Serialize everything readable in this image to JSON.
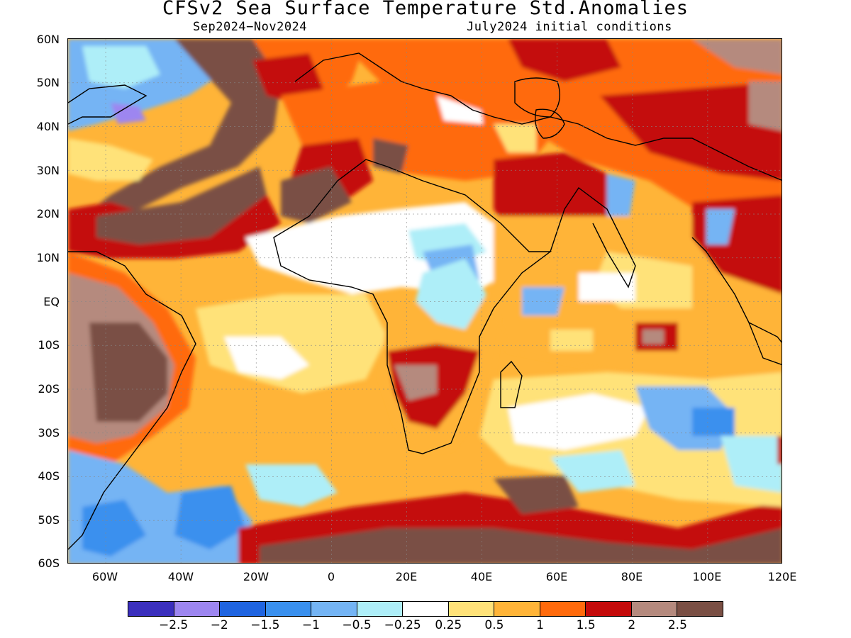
{
  "title": "CFSv2 Sea Surface Temperature Std.Anomalies",
  "subtitle_left": "Sep2024−Nov2024",
  "subtitle_right": "July2024 initial conditions",
  "map": {
    "lat_labels": [
      "60N",
      "50N",
      "40N",
      "30N",
      "20N",
      "10N",
      "EQ",
      "10S",
      "20S",
      "30S",
      "40S",
      "50S",
      "60S"
    ],
    "lon_labels": [
      "60W",
      "40W",
      "20W",
      "0",
      "20E",
      "40E",
      "60E",
      "80E",
      "100E",
      "120E"
    ],
    "lat_range": [
      -60,
      60
    ],
    "lon_range": [
      -70,
      120
    ],
    "grid": "dotted",
    "colors_note": "filled contours of standardized anomaly"
  },
  "colorbar": {
    "colors": [
      "#3b2fbd",
      "#9d86f0",
      "#1f64e0",
      "#3a90ee",
      "#74b4f4",
      "#aeeef8",
      "#ffffff",
      "#ffe279",
      "#ffb438",
      "#ff6a0c",
      "#c40a0a",
      "#b58a7e",
      "#7a4f44"
    ],
    "labels": [
      "−2.5",
      "−2",
      "−1.5",
      "−1",
      "−0.5",
      "−0.25",
      "0.25",
      "0.5",
      "1",
      "1.5",
      "2",
      "2.5"
    ]
  }
}
